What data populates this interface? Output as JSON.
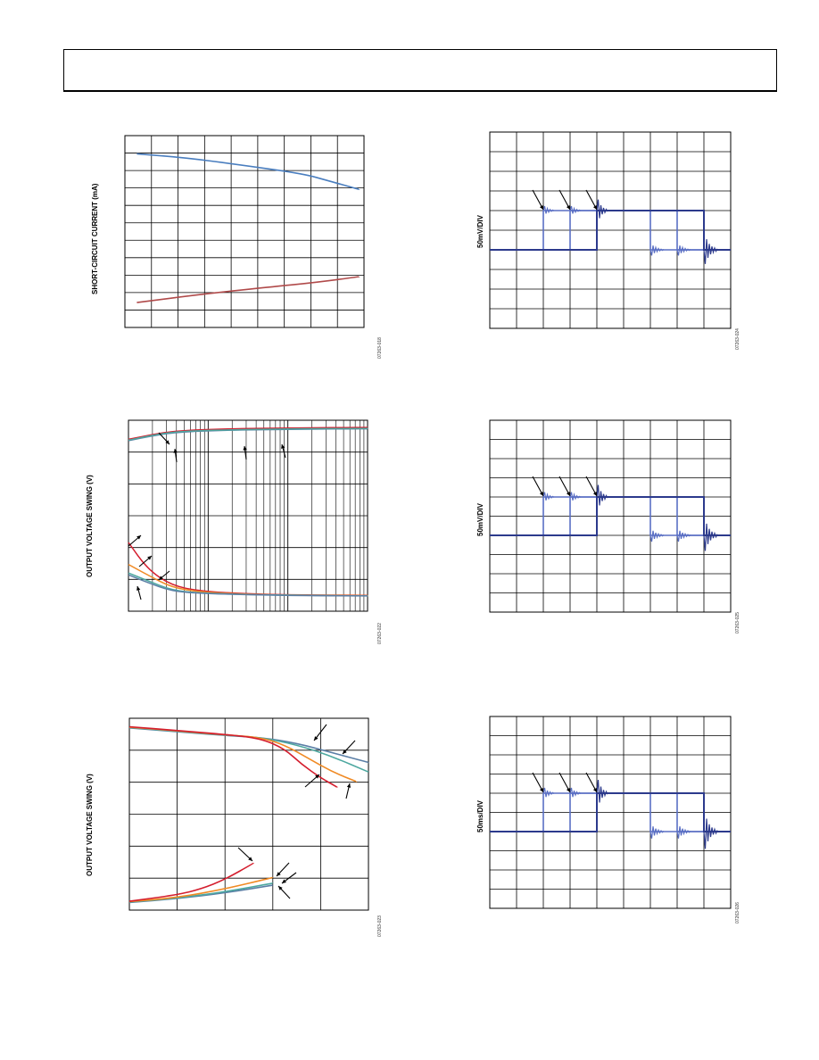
{
  "figures": [
    {
      "id": "short-circuit",
      "ylabel": "SHORT-CIRCUIT CURRENT (mA)",
      "fig_id": "07263-018",
      "chart_data": {
        "type": "line",
        "title": "",
        "xlabel": "",
        "ylabel": "SHORT-CIRCUIT CURRENT (mA)",
        "grid": true,
        "vertical_gridlines": 9,
        "horizontal_gridlines": 11,
        "x_range": [
          0,
          1
        ],
        "y_range": [
          0,
          1
        ],
        "series": [
          {
            "color": "#4a7ebf",
            "x": [
              0.05,
              0.25,
              0.5,
              0.75,
              0.85,
              0.98
            ],
            "y": [
              0.905,
              0.885,
              0.845,
              0.8,
              0.765,
              0.72
            ]
          },
          {
            "color": "#b04a4a",
            "x": [
              0.05,
              0.3,
              0.6,
              0.8,
              0.98
            ],
            "y": [
              0.13,
              0.17,
              0.21,
              0.235,
              0.265
            ]
          }
        ]
      }
    },
    {
      "id": "swing-log",
      "ylabel": "OUTPUT VOLTAGE SWING (V)",
      "fig_id": "07263-022",
      "chart_data": {
        "type": "line",
        "title": "",
        "xlabel": "",
        "ylabel": "OUTPUT VOLTAGE SWING (V)",
        "grid": true,
        "x_scale": "log",
        "decades": 3,
        "horizontal_gridlines": 6,
        "x_range": [
          0,
          1
        ],
        "y_range": [
          0,
          1
        ],
        "series": [
          {
            "color": "#d41e2e",
            "x": [
              0,
              0.1,
              0.2,
              0.4,
              0.7,
              1
            ],
            "y": [
              0.9,
              0.925,
              0.945,
              0.955,
              0.96,
              0.962
            ]
          },
          {
            "color": "#5b7fa6",
            "x": [
              0,
              0.1,
              0.2,
              0.4,
              0.7,
              1
            ],
            "y": [
              0.893,
              0.918,
              0.938,
              0.948,
              0.953,
              0.955
            ]
          },
          {
            "color": "#4da8a0",
            "x": [
              0,
              0.1,
              0.2,
              0.4,
              0.7,
              1
            ],
            "y": [
              0.896,
              0.921,
              0.941,
              0.95,
              0.955,
              0.957
            ]
          },
          {
            "color": "#d41e2e",
            "x": [
              0,
              0.08,
              0.18,
              0.3,
              0.5,
              0.7,
              1
            ],
            "y": [
              0.36,
              0.22,
              0.135,
              0.105,
              0.09,
              0.085,
              0.083
            ]
          },
          {
            "color": "#f08a24",
            "x": [
              0,
              0.08,
              0.18,
              0.3,
              0.5,
              0.7,
              1
            ],
            "y": [
              0.245,
              0.19,
              0.125,
              0.1,
              0.088,
              0.084,
              0.082
            ]
          },
          {
            "color": "#4da8a0",
            "x": [
              0,
              0.08,
              0.18,
              0.3,
              0.5,
              0.7,
              1
            ],
            "y": [
              0.2,
              0.16,
              0.11,
              0.095,
              0.087,
              0.083,
              0.081
            ]
          },
          {
            "color": "#5b7fa6",
            "x": [
              0,
              0.08,
              0.18,
              0.3,
              0.5,
              0.7,
              1
            ],
            "y": [
              0.19,
              0.15,
              0.105,
              0.093,
              0.086,
              0.082,
              0.08
            ]
          }
        ]
      }
    },
    {
      "id": "swing-linear",
      "ylabel": "OUTPUT VOLTAGE SWING (V)",
      "fig_id": "07263-023",
      "chart_data": {
        "type": "line",
        "title": "",
        "xlabel": "",
        "ylabel": "OUTPUT VOLTAGE SWING (V)",
        "grid": true,
        "vertical_gridlines": 5,
        "horizontal_gridlines": 6,
        "x_range": [
          0,
          1
        ],
        "y_range": [
          0,
          1
        ],
        "series": [
          {
            "color": "#5b7fa6",
            "x": [
              0,
              0.2,
              0.4,
              0.55,
              0.7,
              0.85,
              1
            ],
            "y": [
              0.95,
              0.93,
              0.91,
              0.9,
              0.87,
              0.82,
              0.77
            ]
          },
          {
            "color": "#4da8a0",
            "x": [
              0,
              0.2,
              0.4,
              0.55,
              0.7,
              0.85,
              1
            ],
            "y": [
              0.952,
              0.932,
              0.912,
              0.9,
              0.862,
              0.8,
              0.72
            ]
          },
          {
            "color": "#f08a24",
            "x": [
              0,
              0.2,
              0.4,
              0.55,
              0.65,
              0.75,
              0.85,
              0.95
            ],
            "y": [
              0.954,
              0.934,
              0.914,
              0.9,
              0.86,
              0.79,
              0.72,
              0.67
            ]
          },
          {
            "color": "#d41e2e",
            "x": [
              0,
              0.2,
              0.4,
              0.55,
              0.65,
              0.72,
              0.8,
              0.87
            ],
            "y": [
              0.956,
              0.936,
              0.916,
              0.895,
              0.84,
              0.76,
              0.69,
              0.64
            ]
          },
          {
            "color": "#5b7fa6",
            "x": [
              0,
              0.2,
              0.4,
              0.6
            ],
            "y": [
              0.04,
              0.06,
              0.09,
              0.13
            ]
          },
          {
            "color": "#4da8a0",
            "x": [
              0,
              0.2,
              0.4,
              0.6
            ],
            "y": [
              0.042,
              0.062,
              0.095,
              0.14
            ]
          },
          {
            "color": "#f08a24",
            "x": [
              0,
              0.2,
              0.4,
              0.6
            ],
            "y": [
              0.044,
              0.065,
              0.11,
              0.17
            ]
          },
          {
            "color": "#d41e2e",
            "x": [
              0,
              0.2,
              0.3,
              0.4,
              0.52
            ],
            "y": [
              0.046,
              0.08,
              0.11,
              0.16,
              0.245
            ]
          }
        ]
      }
    },
    {
      "id": "scope-1",
      "ylabel": "50mV/DIV",
      "fig_id": "07263-024",
      "chart_data": {
        "type": "line",
        "title": "",
        "xlabel": "",
        "ylabel": "50mV/DIV",
        "grid": true,
        "divisions_x": 9,
        "divisions_y": 10,
        "x_range": [
          0,
          9
        ],
        "y_range": [
          0,
          10
        ],
        "baseline_div": 4,
        "high_div": 6,
        "edges_div": [
          2,
          3,
          4,
          6,
          7,
          8
        ],
        "overshoot_div": 0.8,
        "trace_color": "#2c3a8c",
        "trace_color_light": "#5a6fc4"
      }
    },
    {
      "id": "scope-2",
      "ylabel": "50mV/DIV",
      "fig_id": "07263-025",
      "chart_data": {
        "type": "line",
        "title": "",
        "xlabel": "",
        "ylabel": "50mV/DIV",
        "grid": true,
        "divisions_x": 9,
        "divisions_y": 10,
        "x_range": [
          0,
          9
        ],
        "y_range": [
          0,
          10
        ],
        "baseline_div": 4,
        "high_div": 6,
        "edges_div": [
          2,
          3,
          4,
          6,
          7,
          8
        ],
        "overshoot_div": 0.9,
        "trace_color": "#2c3a8c",
        "trace_color_light": "#5a6fc4"
      }
    },
    {
      "id": "scope-3",
      "ylabel": "50ms/DIV",
      "fig_id": "07263-026",
      "chart_data": {
        "type": "line",
        "title": "",
        "xlabel": "",
        "ylabel": "50ms/DIV",
        "grid": true,
        "divisions_x": 9,
        "divisions_y": 10,
        "x_range": [
          0,
          9
        ],
        "y_range": [
          0,
          10
        ],
        "baseline_div": 4,
        "high_div": 6,
        "edges_div": [
          2,
          3,
          4,
          6,
          7,
          8
        ],
        "overshoot_div": 1.0,
        "trace_color": "#2c3a8c",
        "trace_color_light": "#5a6fc4"
      }
    }
  ]
}
